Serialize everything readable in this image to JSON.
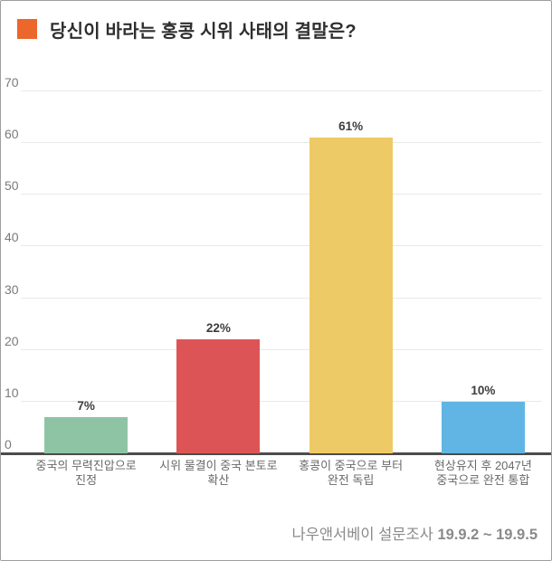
{
  "header": {
    "bullet_color": "#eb672b",
    "title": "당신이 바라는 홍콩 시위 사태의 결말은?"
  },
  "chart_data": {
    "type": "bar",
    "title": "당신이 바라는 홍콩 시위 사태의 결말은?",
    "categories": [
      "중국의 무력진압으로\n진정",
      "시위 물결이 중국 본토로\n확산",
      "홍콩이 중국으로 부터\n완전 독립",
      "현상유지 후 2047년\n중국으로 완전 통합"
    ],
    "values": [
      7,
      22,
      61,
      10
    ],
    "value_labels": [
      "7%",
      "22%",
      "61%",
      "10%"
    ],
    "bar_colors": [
      "#8ec4a4",
      "#dd5456",
      "#eeca66",
      "#60b5e4"
    ],
    "ylim": [
      0,
      70
    ],
    "y_ticks": [
      0,
      10,
      20,
      30,
      40,
      50,
      60,
      70
    ],
    "grid": true,
    "legend": "none",
    "xlabel": "",
    "ylabel": ""
  },
  "footer": {
    "source": "나우앤서베이 설문조사",
    "period": "19.9.2 ~ 19.9.5"
  }
}
